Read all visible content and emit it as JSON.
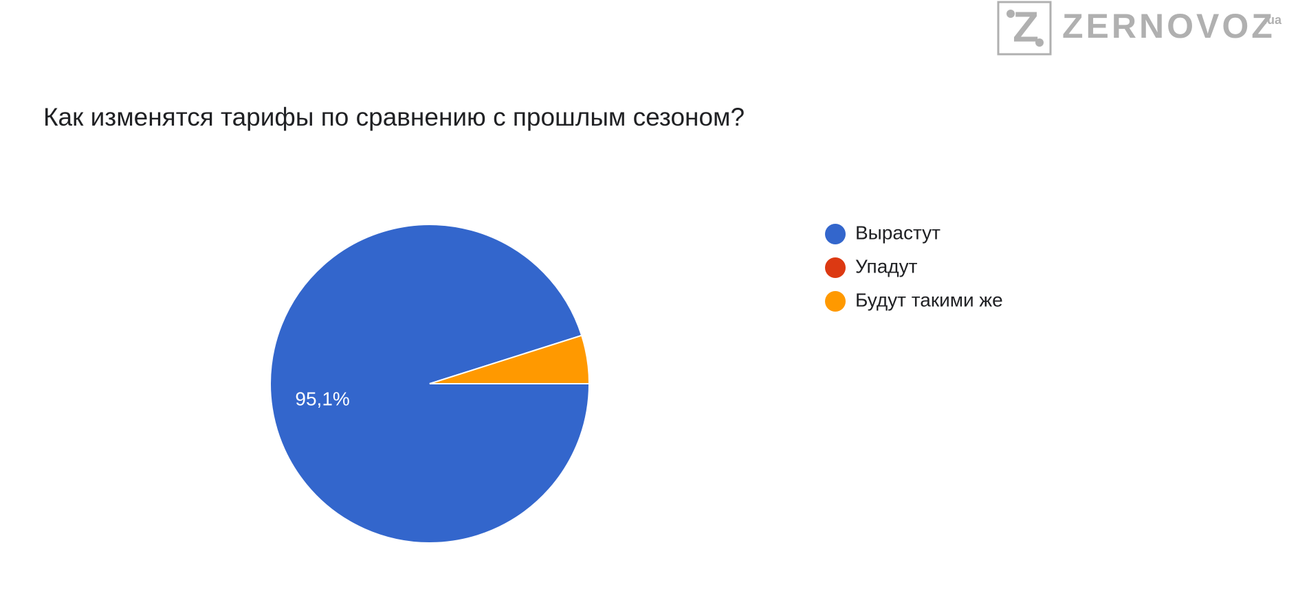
{
  "logo": {
    "icon": "Z",
    "text": "ZERNOVOZ",
    "suffix": ".ua"
  },
  "chart_data": {
    "type": "pie",
    "title": "Как изменятся тарифы по сравнению с прошлым сезоном?",
    "categories": [
      "Вырастут",
      "Упадут",
      "Будут такими же"
    ],
    "values": [
      95.1,
      0,
      4.9
    ],
    "value_labels": [
      "95,1%",
      null,
      null
    ],
    "colors": [
      "#3366cc",
      "#dc3912",
      "#ff9900"
    ],
    "legend": "right"
  }
}
